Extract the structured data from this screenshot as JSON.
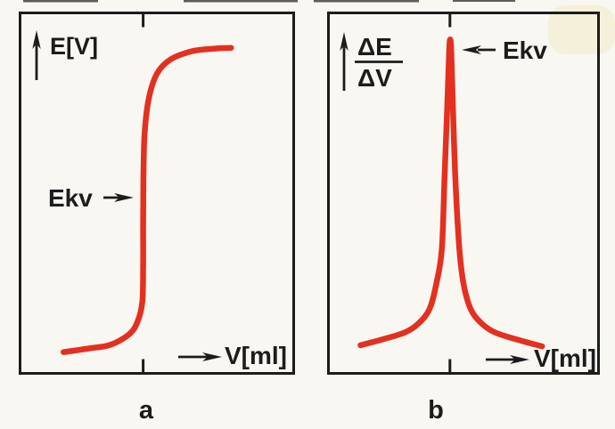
{
  "figure": {
    "background": "#f9f7f2",
    "ink_color": "#1c1c1c",
    "curve_color": "#e3301f"
  },
  "panel_a": {
    "caption": "a",
    "y_axis_label": "E[V]",
    "x_axis_label": "V[ml]",
    "equivalence_label": "Ekv"
  },
  "panel_b": {
    "caption": "b",
    "y_axis_numerator": "ΔE",
    "y_axis_denominator": "ΔV",
    "x_axis_label": "V[ml]",
    "equivalence_label": "Ekv"
  },
  "chart_data": [
    {
      "type": "line",
      "panel": "a",
      "title": "",
      "xlabel": "V[ml]",
      "ylabel": "E[V]",
      "grid": false,
      "axis_numeric_labels": false,
      "x_range": [
        0,
        100
      ],
      "y_range": [
        0,
        100
      ],
      "equivalence_x": 45,
      "annotations": [
        {
          "text": "Ekv",
          "target_x": 45,
          "target_y": 49
        }
      ],
      "series": [
        {
          "name": "titration-curve",
          "points": [
            [
              16,
              6
            ],
            [
              25,
              7
            ],
            [
              33,
              8
            ],
            [
              40,
              11
            ],
            [
              43,
              14.5
            ],
            [
              44.7,
              20
            ],
            [
              45,
              30
            ],
            [
              45,
              42
            ],
            [
              45.1,
              54
            ],
            [
              45.5,
              66
            ],
            [
              47,
              76
            ],
            [
              50,
              83
            ],
            [
              55,
              87
            ],
            [
              63,
              89.3
            ],
            [
              71,
              90
            ],
            [
              77,
              90.2
            ]
          ]
        }
      ]
    },
    {
      "type": "line",
      "panel": "b",
      "title": "",
      "xlabel": "V[ml]",
      "ylabel": "ΔE/ΔV",
      "grid": false,
      "axis_numeric_labels": false,
      "x_range": [
        0,
        100
      ],
      "y_range": [
        0,
        100
      ],
      "equivalence_x": 45,
      "annotations": [
        {
          "text": "Ekv",
          "target_x": 45.1,
          "target_y": 92.5
        }
      ],
      "series": [
        {
          "name": "derivative-curve",
          "points": [
            [
              12,
              7.9
            ],
            [
              20,
              9.5
            ],
            [
              28.5,
              11.5
            ],
            [
              33.5,
              14
            ],
            [
              37.5,
              18
            ],
            [
              40,
              25
            ],
            [
              42,
              34.5
            ],
            [
              43,
              54
            ],
            [
              44,
              74
            ],
            [
              44.7,
              89
            ],
            [
              45.1,
              92.5
            ],
            [
              45.5,
              89
            ],
            [
              46.1,
              74
            ],
            [
              47,
              54
            ],
            [
              48.5,
              34.5
            ],
            [
              50,
              25
            ],
            [
              52.6,
              18
            ],
            [
              56.6,
              14
            ],
            [
              61.5,
              11.5
            ],
            [
              69.7,
              9.5
            ],
            [
              79,
              7.6
            ]
          ]
        }
      ]
    }
  ]
}
